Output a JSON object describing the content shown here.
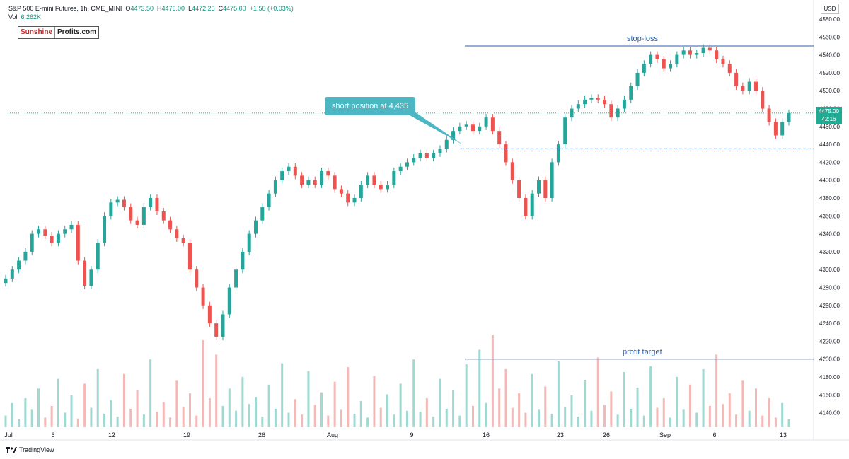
{
  "header": {
    "symbol": "S&P 500 E-mini Futures, 1h, CME_MINI",
    "o_label": "O",
    "o_value": "4473.50",
    "h_label": "H",
    "h_value": "4476.00",
    "l_label": "L",
    "l_value": "4472.25",
    "c_label": "C",
    "c_value": "4475.00",
    "change": "+1.50 (+0.03%)",
    "vol_label": "Vol",
    "vol_value": "6.262K"
  },
  "logo": {
    "part1": "Sunshine",
    "part2": "Profits.com"
  },
  "currency": "USD",
  "last_price": {
    "value": "4475.00",
    "countdown": "42:16"
  },
  "footer": {
    "brand": "TradingView"
  },
  "colors": {
    "up": "#26a69a",
    "down": "#ef5350",
    "annotation_line": "#2a5fb0",
    "callout": "#4db6c3"
  },
  "chart_data": {
    "type": "line",
    "title": "",
    "xlabel": "",
    "ylabel": "",
    "ylim": [
      4120,
      4590
    ],
    "y_ticks": [
      4140,
      4160,
      4180,
      4200,
      4220,
      4240,
      4260,
      4280,
      4300,
      4320,
      4340,
      4360,
      4380,
      4400,
      4420,
      4440,
      4460,
      4480,
      4500,
      4520,
      4540,
      4560,
      4580
    ],
    "x_ticks": [
      "Jul",
      "6",
      "12",
      "19",
      "26",
      "Aug",
      "9",
      "16",
      "23",
      "26",
      "Sep",
      "6",
      "13"
    ],
    "series": [
      {
        "values": [
          4290,
          4300,
          4310,
          4320,
          4340,
          4345,
          4338,
          4330,
          4340,
          4345,
          4350,
          4310,
          4282,
          4300,
          4330,
          4360,
          4375,
          4378,
          4370,
          4355,
          4350,
          4370,
          4380,
          4365,
          4355,
          4345,
          4335,
          4330,
          4300,
          4280,
          4260,
          4240,
          4225,
          4250,
          4280,
          4300,
          4320,
          4340,
          4355,
          4370,
          4385,
          4400,
          4410,
          4415,
          4405,
          4395,
          4400,
          4395,
          4410,
          4405,
          4390,
          4385,
          4375,
          4380,
          4395,
          4405,
          4395,
          4390,
          4395,
          4410,
          4415,
          4420,
          4425,
          4430,
          4425,
          4430,
          4435,
          4445,
          4455,
          4460,
          4462,
          4455,
          4460,
          4470,
          4455,
          4440,
          4420,
          4400,
          4380,
          4360,
          4385,
          4400,
          4380,
          4420,
          4440,
          4470,
          4480,
          4485,
          4490,
          4492,
          4490,
          4485,
          4470,
          4480,
          4490,
          4505,
          4520,
          4530,
          4540,
          4535,
          4525,
          4530,
          4540,
          4545,
          4540,
          4542,
          4548,
          4545,
          4535,
          4530,
          4520,
          4505,
          4500,
          4510,
          4500,
          4480,
          4465,
          4450,
          4465,
          4475
        ],
        "labels": []
      }
    ],
    "volume": [
      12,
      25,
      8,
      30,
      18,
      40,
      10,
      22,
      50,
      15,
      33,
      9,
      45,
      20,
      60,
      14,
      28,
      11,
      55,
      19,
      38,
      13,
      70,
      16,
      26,
      10,
      48,
      21,
      35,
      12,
      90,
      30,
      75,
      22,
      40,
      17,
      52,
      24,
      31,
      11,
      44,
      19,
      66,
      15,
      29,
      13,
      58,
      23,
      36,
      12,
      47,
      18,
      62,
      14,
      27,
      10,
      53,
      20,
      34,
      13,
      45,
      17,
      70,
      16,
      30,
      11,
      50,
      19,
      38,
      12,
      65,
      22,
      80,
      25,
      95,
      40,
      60,
      20,
      35,
      15,
      55,
      18,
      42,
      14,
      68,
      21,
      33,
      11,
      49,
      17,
      72,
      23,
      37,
      13,
      57,
      19,
      41,
      12,
      63,
      20,
      30,
      10,
      52,
      18,
      44,
      15,
      60,
      22,
      75,
      24,
      35,
      13,
      48,
      17,
      40,
      12,
      30,
      10,
      25,
      8
    ],
    "annotations": [
      {
        "text": "stop-loss",
        "value": 4550
      },
      {
        "text": "profit target",
        "value": 4200
      },
      {
        "text": "short position at 4,435",
        "value": 4435
      }
    ]
  }
}
